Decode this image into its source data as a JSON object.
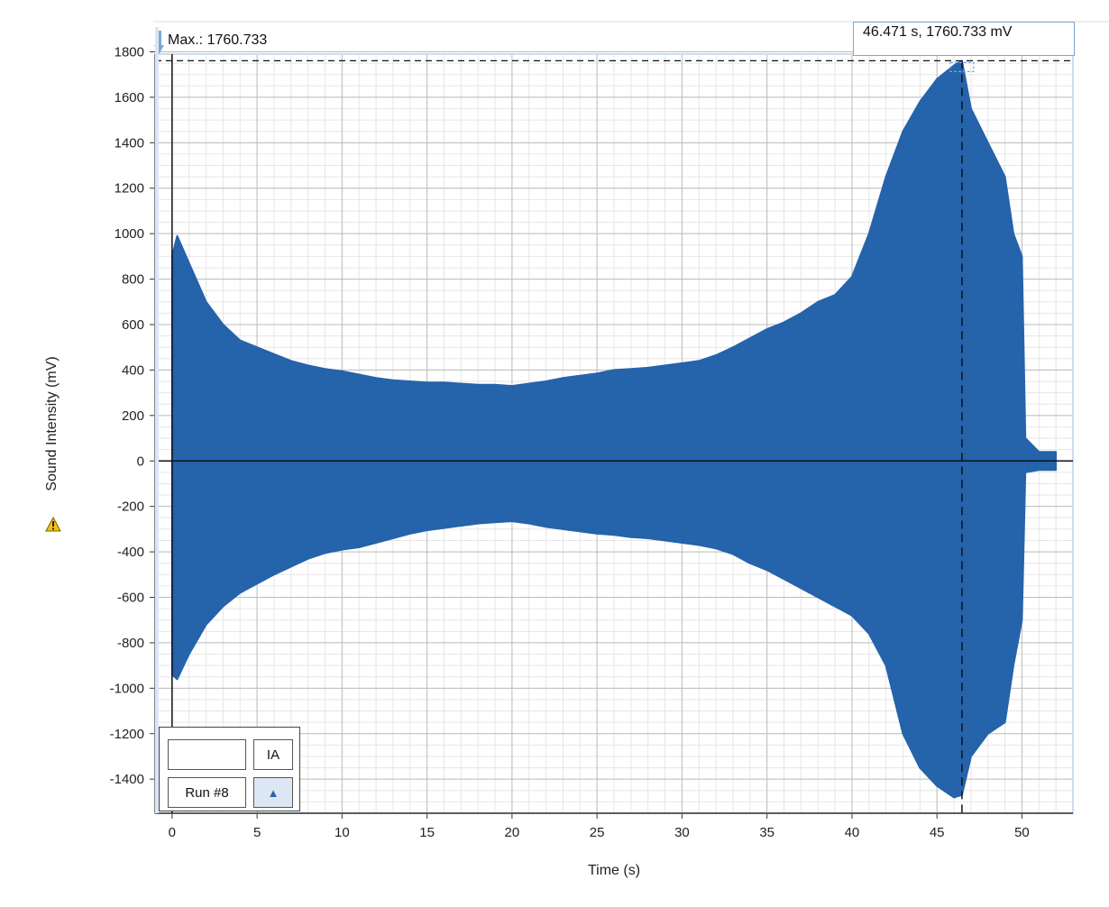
{
  "chart_data": {
    "type": "area",
    "xlabel": "Time (s)",
    "ylabel": "Sound Intensity (mV)",
    "xlim": [
      -1,
      53
    ],
    "ylim": [
      -1550,
      1790
    ],
    "x_ticks": [
      0,
      5,
      10,
      15,
      20,
      25,
      30,
      35,
      40,
      45,
      50
    ],
    "y_ticks": [
      1800,
      1600,
      1400,
      1200,
      1000,
      800,
      600,
      400,
      200,
      0,
      -200,
      -400,
      -600,
      -800,
      -1000,
      -1200,
      -1400
    ],
    "grid": true,
    "series": [
      {
        "name": "Run #8",
        "color": "#2563ab",
        "envelope_x": [
          0,
          0.3,
          1,
          2,
          3,
          4,
          5,
          6,
          7,
          8,
          9,
          10,
          11,
          12,
          13,
          14,
          15,
          16,
          17,
          18,
          19,
          20,
          21,
          22,
          23,
          24,
          25,
          26,
          27,
          28,
          29,
          30,
          31,
          32,
          33,
          34,
          35,
          36,
          37,
          38,
          39,
          40,
          41,
          42,
          43,
          44,
          45,
          46,
          46.471,
          47,
          48,
          49,
          49.5,
          50,
          50.2,
          51,
          52
        ],
        "upper": [
          900,
          990,
          870,
          700,
          600,
          530,
          500,
          470,
          440,
          420,
          405,
          395,
          380,
          365,
          355,
          350,
          345,
          345,
          340,
          335,
          335,
          330,
          340,
          350,
          365,
          375,
          385,
          400,
          405,
          410,
          420,
          430,
          440,
          465,
          500,
          540,
          580,
          610,
          650,
          700,
          730,
          810,
          1000,
          1250,
          1450,
          1580,
          1680,
          1740,
          1760.733,
          1550,
          1400,
          1250,
          1000,
          900,
          100,
          40,
          40
        ],
        "lower": [
          -940,
          -960,
          -850,
          -720,
          -640,
          -580,
          -540,
          -500,
          -465,
          -430,
          -405,
          -390,
          -380,
          -360,
          -340,
          -320,
          -305,
          -295,
          -285,
          -275,
          -270,
          -265,
          -275,
          -290,
          -300,
          -310,
          -320,
          -325,
          -335,
          -340,
          -350,
          -360,
          -370,
          -385,
          -410,
          -450,
          -480,
          -520,
          -560,
          -600,
          -640,
          -680,
          -760,
          -900,
          -1200,
          -1350,
          -1430,
          -1480,
          -1470,
          -1300,
          -1200,
          -1150,
          -900,
          -700,
          -50,
          -40,
          -40
        ]
      }
    ],
    "max_label": "Max.: 1760.733",
    "max_point": {
      "x": 46.471,
      "y": 1760.733
    },
    "readout": "46.471 s, 1760.733 mV"
  },
  "legend": {
    "header": "IA",
    "run_label": "Run #8"
  },
  "colors": {
    "data": "#2563ab",
    "grid_major": "#bdbdbd",
    "grid_minor": "#e6e6e6",
    "accent": "#7ea6d8"
  },
  "icons": {
    "warning": "warning-icon",
    "max_marker": "max-marker-icon"
  }
}
